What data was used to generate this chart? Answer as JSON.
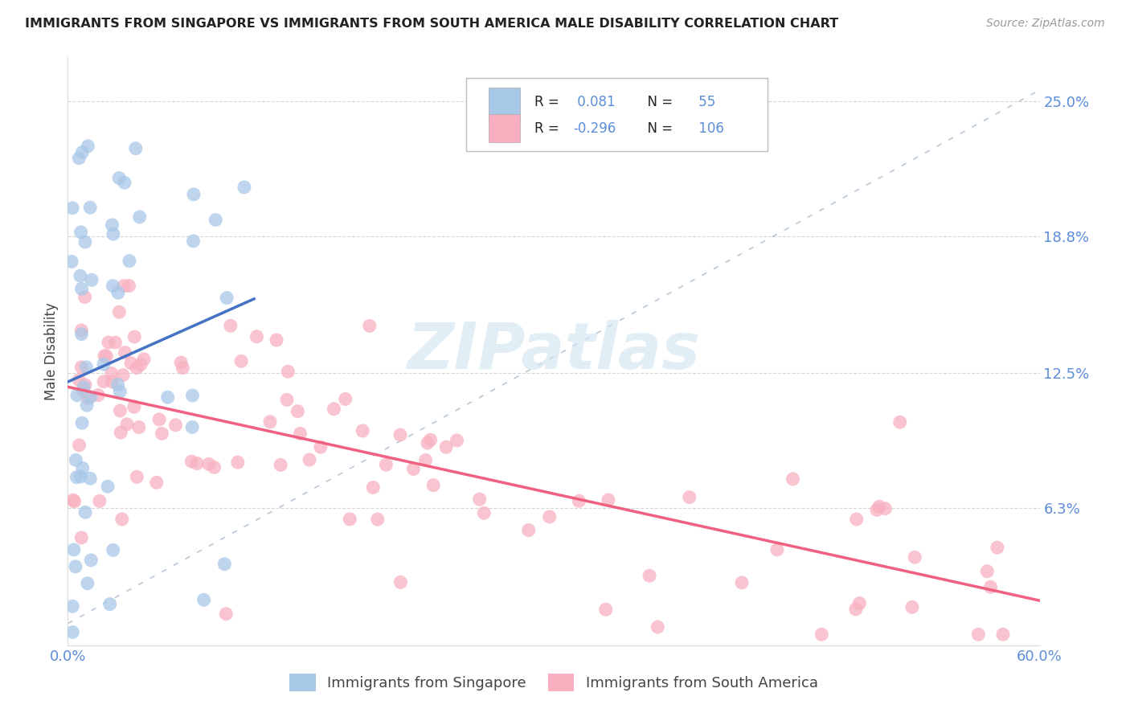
{
  "title": "IMMIGRANTS FROM SINGAPORE VS IMMIGRANTS FROM SOUTH AMERICA MALE DISABILITY CORRELATION CHART",
  "source": "Source: ZipAtlas.com",
  "ylabel": "Male Disability",
  "xlim": [
    0.0,
    0.6
  ],
  "ylim": [
    0.0,
    0.27
  ],
  "r1": 0.081,
  "n1": 55,
  "r2": -0.296,
  "n2": 106,
  "color1": "#a8c8e8",
  "color2": "#f8b0c0",
  "line1_color": "#4472c4",
  "line2_color": "#f06080",
  "background_color": "#ffffff",
  "watermark_color": "#d0e4f0",
  "grid_color": "#cccccc",
  "ytick_color": "#5b8dd9",
  "xtick_color": "#5b8dd9",
  "legend_label1": "Immigrants from Singapore",
  "legend_label2": "Immigrants from South America"
}
